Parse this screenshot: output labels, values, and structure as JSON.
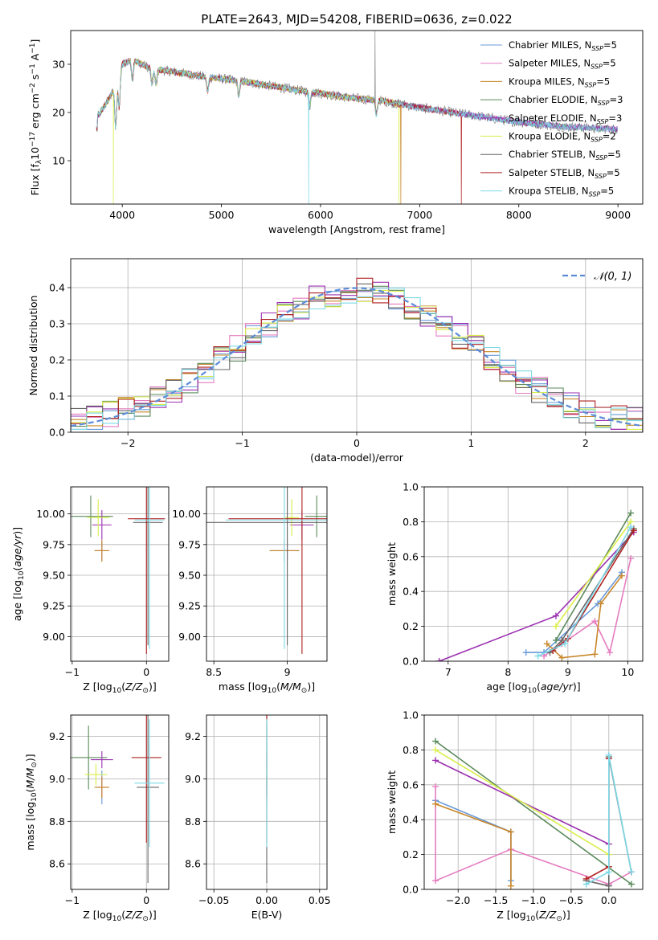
{
  "figure": {
    "title": "PLATE=2643, MJD=54208, FIBERID=0636, z=0.022"
  },
  "colors": {
    "chabrier_miles": "#6a9bd8",
    "salpeter_miles": "#e57cc0",
    "kroupa_miles": "#c8872a",
    "chabrier_elodie": "#5b8a5b",
    "salpeter_elodie": "#9b30b0",
    "kroupa_elodie": "#d9ee4a",
    "chabrier_stelib": "#666666",
    "salpeter_stelib": "#b02020",
    "kroupa_stelib": "#7dd9e6",
    "gaussian": "#5b8bd8",
    "grid": "#b0b0b0"
  },
  "chart_data": [
    {
      "id": "spectrum",
      "type": "line",
      "title": "PLATE=2643, MJD=54208, FIBERID=0636, z=0.022",
      "xlabel": "wavelength [Angstrom, rest frame]",
      "ylabel": "Flux [f_λ 10^-17 erg cm^-2 s^-1 A^-1]",
      "xlim": [
        3480,
        9250
      ],
      "ylim": [
        1,
        37
      ],
      "xticks": [
        4000,
        5000,
        6000,
        7000,
        8000,
        9000
      ],
      "yticks": [
        10,
        20,
        30
      ],
      "legend_position": "top-right",
      "legend": [
        {
          "base": "Chabrier MILES, N",
          "sub": "SSP",
          "tail": "=5",
          "color_key": "chabrier_miles"
        },
        {
          "base": "Salpeter MILES, N",
          "sub": "SSP",
          "tail": "=5",
          "color_key": "salpeter_miles"
        },
        {
          "base": "Kroupa MILES, N",
          "sub": "SSP",
          "tail": "=5",
          "color_key": "kroupa_miles"
        },
        {
          "base": "Chabrier ELODIE, N",
          "sub": "SSP",
          "tail": "=3",
          "color_key": "chabrier_elodie"
        },
        {
          "base": "Salpeter ELODIE, N",
          "sub": "SSP",
          "tail": "=3",
          "color_key": "salpeter_elodie"
        },
        {
          "base": "Kroupa ELODIE, N",
          "sub": "SSP",
          "tail": "=2",
          "color_key": "kroupa_elodie"
        },
        {
          "base": "Chabrier STELIB, N",
          "sub": "SSP",
          "tail": "=5",
          "color_key": "chabrier_stelib"
        },
        {
          "base": "Salpeter STELIB, N",
          "sub": "SSP",
          "tail": "=5",
          "color_key": "salpeter_stelib"
        },
        {
          "base": "Kroupa STELIB, N",
          "sub": "SSP",
          "tail": "=5",
          "color_key": "kroupa_stelib"
        }
      ],
      "continuum": [
        [
          3750,
          19
        ],
        [
          3900,
          24
        ],
        [
          4000,
          30
        ],
        [
          4100,
          31
        ],
        [
          4300,
          29
        ],
        [
          4500,
          28.5
        ],
        [
          4800,
          27.5
        ],
        [
          5000,
          27
        ],
        [
          5200,
          26.5
        ],
        [
          5500,
          25.5
        ],
        [
          5800,
          24.5
        ],
        [
          6000,
          24
        ],
        [
          6300,
          23
        ],
        [
          6600,
          22.5
        ],
        [
          7000,
          21
        ],
        [
          7500,
          19.5
        ],
        [
          8000,
          18
        ],
        [
          8500,
          17
        ],
        [
          9000,
          16.5
        ]
      ],
      "features": [
        {
          "model": "kroupa_stelib",
          "x": 5880,
          "y": 1
        },
        {
          "model": "kroupa_elodie",
          "x": 3910,
          "y": 1
        },
        {
          "model": "kroupa_elodie",
          "x": 6790,
          "y": 1
        },
        {
          "model": "salpeter_stelib",
          "x": 7420,
          "y": 1
        },
        {
          "model": "kroupa_miles",
          "x": 6810,
          "y": 1
        },
        {
          "model": "chabrier_stelib",
          "x": 6550,
          "y": 37
        }
      ]
    },
    {
      "id": "residuals",
      "type": "histogram",
      "xlabel": "(data-model)/error",
      "ylabel": "Normed distribution",
      "xlim": [
        -2.5,
        2.5
      ],
      "ylim": [
        0,
        0.48
      ],
      "xticks": [
        -2,
        -1,
        0,
        1,
        2
      ],
      "yticks": [
        0.0,
        0.1,
        0.2,
        0.3,
        0.4
      ],
      "legend_position": "top-right",
      "gaussian_label": "𝒩(0, 1)",
      "bins": [
        -2.5,
        2.5,
        36
      ],
      "gaussian": {
        "mean": 0,
        "sigma": 1
      }
    },
    {
      "id": "age_vs_Z",
      "type": "errorbar",
      "xlabel": "Z [log10(Z/Z⊙)]",
      "ylabel": "age  [log10(age/yr)]",
      "xlim": [
        -1.02,
        0.3
      ],
      "ylim": [
        8.8,
        10.22
      ],
      "xticks": [
        -1,
        0
      ],
      "yticks": [
        9.0,
        9.25,
        9.5,
        9.75,
        10.0
      ],
      "points": [
        {
          "m": "chabrier_miles",
          "x": -0.6,
          "y": 9.7,
          "xe": 0.1,
          "ye": 0.08
        },
        {
          "m": "salpeter_miles",
          "x": -0.6,
          "y": 9.7,
          "xe": 0.08,
          "ye": 0.07
        },
        {
          "m": "kroupa_miles",
          "x": -0.6,
          "y": 9.7,
          "xe": 0.1,
          "ye": 0.09
        },
        {
          "m": "chabrier_elodie",
          "x": -0.75,
          "y": 9.98,
          "xe": 0.3,
          "ye": 0.17
        },
        {
          "m": "salpeter_elodie",
          "x": -0.6,
          "y": 9.91,
          "xe": 0.13,
          "ye": 0.12
        },
        {
          "m": "kroupa_elodie",
          "x": -0.65,
          "y": 9.97,
          "xe": 0.15,
          "ye": 0.15
        },
        {
          "m": "chabrier_stelib",
          "x": 0.02,
          "y": 9.93,
          "xe": 0.2,
          "ye": 1.0
        },
        {
          "m": "salpeter_stelib",
          "x": 0.0,
          "y": 9.96,
          "xe": 0.25,
          "ye": 1.1
        },
        {
          "m": "kroupa_stelib",
          "x": 0.04,
          "y": 9.95,
          "xe": 0.2,
          "ye": 1.05
        }
      ]
    },
    {
      "id": "age_vs_mass",
      "type": "errorbar",
      "xlabel": "mass [log10(M/M⊙)]",
      "ylabel": "",
      "xlim": [
        8.45,
        9.27
      ],
      "ylim": [
        8.8,
        10.22
      ],
      "xticks": [
        8.5,
        9.0
      ],
      "yticks": [
        9.0,
        9.25,
        9.5,
        9.75,
        10.0
      ],
      "points": [
        {
          "m": "chabrier_miles",
          "x": 8.98,
          "y": 9.7,
          "xe": 0.1,
          "ye": 0.08
        },
        {
          "m": "salpeter_miles",
          "x": 9.0,
          "y": 9.7,
          "xe": 0.08,
          "ye": 0.07
        },
        {
          "m": "kroupa_miles",
          "x": 8.98,
          "y": 9.7,
          "xe": 0.1,
          "ye": 0.09
        },
        {
          "m": "chabrier_elodie",
          "x": 9.2,
          "y": 9.98,
          "xe": 0.08,
          "ye": 0.17
        },
        {
          "m": "salpeter_elodie",
          "x": 9.1,
          "y": 9.91,
          "xe": 0.08,
          "ye": 0.12
        },
        {
          "m": "kroupa_elodie",
          "x": 9.03,
          "y": 9.97,
          "xe": 0.05,
          "ye": 0.15
        },
        {
          "m": "chabrier_stelib",
          "x": 9.0,
          "y": 9.93,
          "xe": 0.6,
          "ye": 1.0
        },
        {
          "m": "salpeter_stelib",
          "x": 9.1,
          "y": 9.96,
          "xe": 0.5,
          "ye": 1.1
        },
        {
          "m": "kroupa_stelib",
          "x": 8.98,
          "y": 9.95,
          "xe": 0.4,
          "ye": 1.05
        }
      ]
    },
    {
      "id": "weight_vs_age",
      "type": "line",
      "xlabel": "age  [log10(age/yr)]",
      "ylabel": "mass weight",
      "xlim": [
        6.6,
        10.25
      ],
      "ylim": [
        0,
        1
      ],
      "xticks": [
        7,
        8,
        9,
        10
      ],
      "yticks": [
        0.0,
        0.2,
        0.4,
        0.6,
        0.8,
        1.0
      ],
      "series": [
        {
          "m": "chabrier_miles",
          "x": [
            8.3,
            8.6,
            9.5,
            9.9
          ],
          "y": [
            0.05,
            0.05,
            0.33,
            0.51
          ]
        },
        {
          "m": "salpeter_miles",
          "x": [
            8.6,
            8.9,
            9.45,
            9.7,
            10.05
          ],
          "y": [
            0.03,
            0.1,
            0.23,
            0.05,
            0.59
          ]
        },
        {
          "m": "kroupa_miles",
          "x": [
            8.65,
            8.9,
            9.45,
            9.55,
            9.9
          ],
          "y": [
            0.1,
            0.02,
            0.04,
            0.33,
            0.49
          ]
        },
        {
          "m": "chabrier_elodie",
          "x": [
            8.8,
            10.05
          ],
          "y": [
            0.12,
            0.85
          ]
        },
        {
          "m": "salpeter_elodie",
          "x": [
            6.85,
            8.8,
            10.1
          ],
          "y": [
            0.0,
            0.26,
            0.74
          ]
        },
        {
          "m": "kroupa_elodie",
          "x": [
            8.8,
            10.05
          ],
          "y": [
            0.2,
            0.8
          ]
        },
        {
          "m": "chabrier_stelib",
          "x": [
            8.7,
            8.9,
            10.1
          ],
          "y": [
            0.05,
            0.12,
            0.76
          ]
        },
        {
          "m": "salpeter_stelib",
          "x": [
            8.75,
            9.0,
            10.1
          ],
          "y": [
            0.06,
            0.13,
            0.75
          ]
        },
        {
          "m": "kroupa_stelib",
          "x": [
            8.5,
            8.95,
            10.05
          ],
          "y": [
            0.03,
            0.1,
            0.77
          ]
        }
      ]
    },
    {
      "id": "mass_vs_Z",
      "type": "errorbar",
      "xlabel": "Z [log10(Z/Z⊙)]",
      "ylabel": "mass [log10(M/M⊙)]",
      "xlim": [
        -1.02,
        0.3
      ],
      "ylim": [
        8.48,
        9.3
      ],
      "xticks": [
        -1,
        0
      ],
      "yticks": [
        8.6,
        8.8,
        9.0,
        9.2
      ],
      "points": [
        {
          "m": "chabrier_miles",
          "x": -0.6,
          "y": 8.96,
          "xe": 0.08,
          "ye": 0.08
        },
        {
          "m": "salpeter_miles",
          "x": -0.6,
          "y": 8.96,
          "xe": 0.08,
          "ye": 0.05
        },
        {
          "m": "kroupa_miles",
          "x": -0.6,
          "y": 8.96,
          "xe": 0.1,
          "ye": 0.05
        },
        {
          "m": "chabrier_elodie",
          "x": -0.78,
          "y": 9.1,
          "xe": 0.25,
          "ye": 0.15
        },
        {
          "m": "salpeter_elodie",
          "x": -0.6,
          "y": 9.09,
          "xe": 0.15,
          "ye": 0.04
        },
        {
          "m": "kroupa_elodie",
          "x": -0.68,
          "y": 9.02,
          "xe": 0.15,
          "ye": 0.05
        },
        {
          "m": "chabrier_stelib",
          "x": 0.02,
          "y": 8.96,
          "xe": 0.15,
          "ye": 0.45
        },
        {
          "m": "salpeter_stelib",
          "x": 0.0,
          "y": 9.1,
          "xe": 0.2,
          "ye": 0.4
        },
        {
          "m": "kroupa_stelib",
          "x": 0.04,
          "y": 8.98,
          "xe": 0.2,
          "ye": 0.3
        }
      ]
    },
    {
      "id": "mass_vs_ebv",
      "type": "errorbar",
      "xlabel": "E(B-V)",
      "ylabel": "",
      "xlim": [
        -0.057,
        0.057
      ],
      "ylim": [
        8.48,
        9.3
      ],
      "xticks": [
        -0.05,
        0.0,
        0.05
      ],
      "xtick_labels": [
        "−0.05",
        "0.00",
        "0.05"
      ],
      "yticks": [
        8.6,
        8.8,
        9.0,
        9.2
      ],
      "points": [
        {
          "m": "chabrier_miles",
          "x": 0,
          "y": 8.96,
          "xe": 0,
          "ye": 0.08
        },
        {
          "m": "salpeter_miles",
          "x": 0,
          "y": 8.96,
          "xe": 0,
          "ye": 0.05
        },
        {
          "m": "kroupa_miles",
          "x": 0,
          "y": 8.96,
          "xe": 0,
          "ye": 0.05
        },
        {
          "m": "chabrier_elodie",
          "x": 0,
          "y": 9.1,
          "xe": 0,
          "ye": 0.15
        },
        {
          "m": "salpeter_elodie",
          "x": 0,
          "y": 9.09,
          "xe": 0,
          "ye": 0.04
        },
        {
          "m": "kroupa_elodie",
          "x": 0,
          "y": 9.02,
          "xe": 0,
          "ye": 0.05
        },
        {
          "m": "chabrier_stelib",
          "x": 0,
          "y": 8.96,
          "xe": 0,
          "ye": 0.45
        },
        {
          "m": "salpeter_stelib",
          "x": 0,
          "y": 9.1,
          "xe": 0,
          "ye": 0.4
        },
        {
          "m": "kroupa_stelib",
          "x": 0,
          "y": 8.98,
          "xe": 0,
          "ye": 0.3
        }
      ]
    },
    {
      "id": "weight_vs_Z",
      "type": "line",
      "xlabel": "Z [log10(Z/Z⊙)]",
      "ylabel": "mass weight",
      "xlim": [
        -2.45,
        0.45
      ],
      "ylim": [
        0,
        1
      ],
      "xticks": [
        -2.0,
        -1.5,
        -1.0,
        -0.5,
        0.0
      ],
      "xtick_labels": [
        "−2.0",
        "−1.5",
        "−1.0",
        "−0.5",
        "0.0"
      ],
      "yticks": [
        0.0,
        0.2,
        0.4,
        0.6,
        0.8,
        1.0
      ],
      "series": [
        {
          "m": "chabrier_miles",
          "x": [
            -2.3,
            -1.3,
            -1.3
          ],
          "y": [
            0.51,
            0.33,
            0.05
          ]
        },
        {
          "m": "salpeter_miles",
          "x": [
            -2.3,
            -2.3,
            -1.3,
            0.0,
            0.3
          ],
          "y": [
            0.59,
            0.05,
            0.23,
            0.03,
            0.1
          ]
        },
        {
          "m": "kroupa_miles",
          "x": [
            -2.3,
            -1.3,
            -1.3
          ],
          "y": [
            0.49,
            0.33,
            0.02
          ]
        },
        {
          "m": "chabrier_elodie",
          "x": [
            -2.3,
            0.3
          ],
          "y": [
            0.85,
            0.03
          ]
        },
        {
          "m": "salpeter_elodie",
          "x": [
            -2.3,
            0.0
          ],
          "y": [
            0.74,
            0.26
          ]
        },
        {
          "m": "kroupa_elodie",
          "x": [
            -2.3,
            0.0
          ],
          "y": [
            0.8,
            0.2
          ]
        },
        {
          "m": "chabrier_stelib",
          "x": [
            -0.3,
            0.0,
            0.0,
            0.3
          ],
          "y": [
            0.05,
            0.02,
            0.76,
            0.1
          ]
        },
        {
          "m": "salpeter_stelib",
          "x": [
            -0.3,
            0.0,
            0.0
          ],
          "y": [
            0.06,
            0.13,
            0.75
          ]
        },
        {
          "m": "kroupa_stelib",
          "x": [
            -0.3,
            0.0,
            0.0,
            0.3
          ],
          "y": [
            0.03,
            0.1,
            0.77,
            0.1
          ]
        }
      ]
    }
  ]
}
